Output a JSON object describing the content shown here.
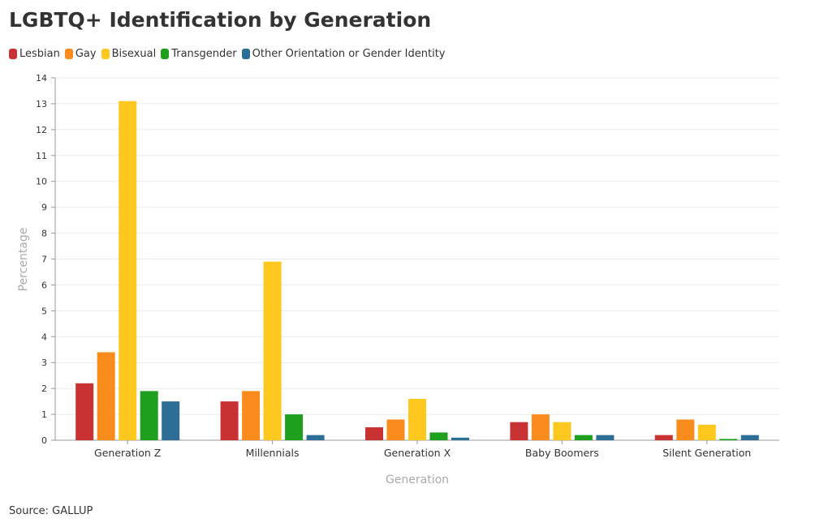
{
  "chart_data": {
    "type": "bar",
    "title": "LGBTQ+ Identification by Generation",
    "xlabel": "Generation",
    "ylabel": "Percentage",
    "ylim": [
      0,
      14
    ],
    "yticks": [
      0,
      1,
      2,
      3,
      4,
      5,
      6,
      7,
      8,
      9,
      10,
      11,
      12,
      13,
      14
    ],
    "grid": true,
    "legend_position": "top-left",
    "categories": [
      "Generation Z",
      "Millennials",
      "Generation X",
      "Baby Boomers",
      "Silent Generation"
    ],
    "series": [
      {
        "name": "Lesbian",
        "color": "#c83232",
        "values": [
          2.2,
          1.5,
          0.5,
          0.7,
          0.2
        ]
      },
      {
        "name": "Gay",
        "color": "#fa8c1e",
        "values": [
          3.4,
          1.9,
          0.8,
          1.0,
          0.8
        ]
      },
      {
        "name": "Bisexual",
        "color": "#ffc81e",
        "values": [
          13.1,
          6.9,
          1.6,
          0.7,
          0.6
        ]
      },
      {
        "name": "Transgender",
        "color": "#1ea01e",
        "values": [
          1.9,
          1.0,
          0.3,
          0.2,
          0.05
        ]
      },
      {
        "name": "Other Orientation or Gender Identity",
        "color": "#2d6e96",
        "values": [
          1.5,
          0.2,
          0.1,
          0.2,
          0.2
        ]
      }
    ],
    "source": "Source: GALLUP"
  }
}
